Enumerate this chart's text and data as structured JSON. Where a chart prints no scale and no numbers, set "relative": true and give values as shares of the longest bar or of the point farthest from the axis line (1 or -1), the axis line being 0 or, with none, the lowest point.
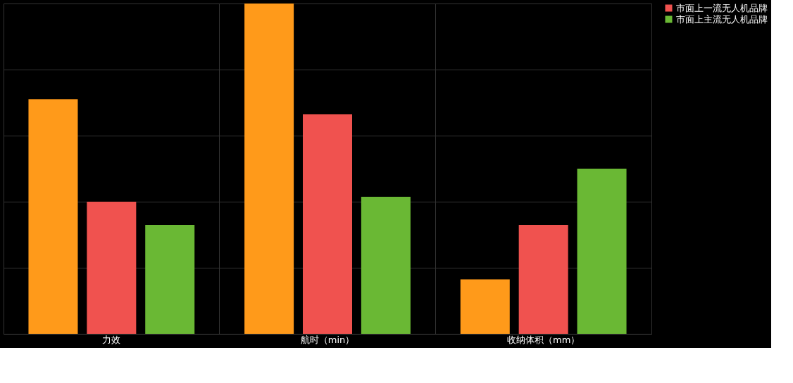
{
  "chart_data": {
    "type": "bar",
    "relative": true,
    "categories": [
      "力效",
      "航时（min）",
      "收纳体积（mm）"
    ],
    "series": [
      {
        "color": "#ff9a1a",
        "values": [
          0.71,
          1,
          0.165
        ]
      },
      {
        "name": "市面上一流无人机品牌",
        "color": "#f0524f",
        "values": [
          0.4,
          0.665,
          0.33
        ]
      },
      {
        "name": "市面上主流无人机品牌",
        "color": "#6ab834",
        "values": [
          0.33,
          0.415,
          0.5
        ]
      }
    ],
    "grid": true,
    "legend": "right"
  }
}
